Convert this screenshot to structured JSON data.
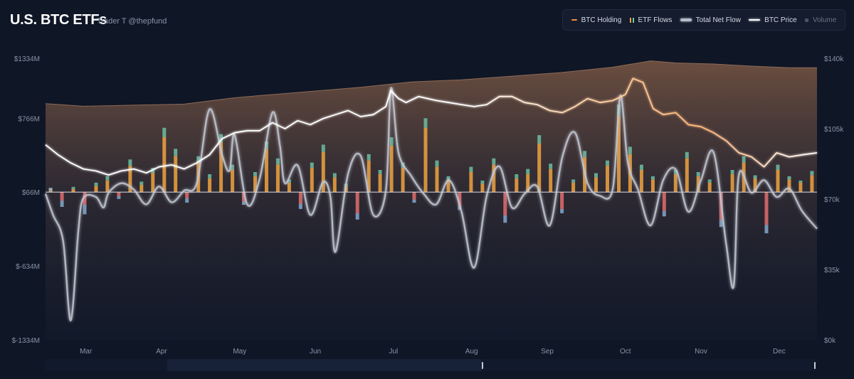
{
  "header": {
    "title": "U.S. BTC ETFs",
    "subtitle": "Trader T @thepfund"
  },
  "legend": {
    "items": [
      {
        "key": "holding",
        "label": "BTC Holding",
        "active": true
      },
      {
        "key": "flows",
        "label": "ETF Flows",
        "active": true
      },
      {
        "key": "net",
        "label": "Total Net Flow",
        "active": true
      },
      {
        "key": "price",
        "label": "BTC Price",
        "active": true
      },
      {
        "key": "volume",
        "label": "Volume",
        "active": false
      }
    ]
  },
  "colors": {
    "background": "#0f1626",
    "holding_fill": "#7a5a45",
    "holding_line": "#f2913d",
    "flow_orange": "#f0a33f",
    "flow_green": "#6fc7a7",
    "flow_red": "#e36d6d",
    "flow_blue": "#8ab0d8",
    "net_flow": "#c3c8d3",
    "price": "#ffffff"
  },
  "chart_data": {
    "type": "bar",
    "title": "U.S. BTC ETFs",
    "left_axis": {
      "ticks": [
        "$1334M",
        "$766M",
        "$66M",
        "$-634M",
        "$-1334M"
      ],
      "tick_values": [
        1334,
        766,
        66,
        -634,
        -1334
      ],
      "range": [
        -1334,
        1334
      ]
    },
    "right_axis": {
      "ticks": [
        "$140k",
        "$105k",
        "$70k",
        "$35k",
        "$0k"
      ],
      "tick_values": [
        140,
        105,
        70,
        35,
        0
      ],
      "range": [
        0,
        140
      ]
    },
    "x_axis": {
      "ticks": [
        "Mar",
        "Apr",
        "May",
        "Jun",
        "Jul",
        "Aug",
        "Sep",
        "Oct",
        "Nov",
        "Dec"
      ],
      "tick_positions": [
        1,
        31,
        62,
        92,
        123,
        154,
        184,
        215,
        245,
        276
      ]
    },
    "x_range": [
      -15,
      291
    ],
    "btc_holding_area": {
      "x": [
        -15,
        0,
        20,
        40,
        60,
        72,
        90,
        110,
        130,
        150,
        170,
        190,
        210,
        225,
        235,
        250,
        265,
        280,
        291
      ],
      "values": [
        904,
        880,
        890,
        900,
        960,
        985,
        1020,
        1060,
        1110,
        1130,
        1165,
        1200,
        1250,
        1310,
        1290,
        1280,
        1260,
        1245,
        1245
      ]
    },
    "btc_price": {
      "x": [
        -15,
        -10,
        -5,
        0,
        5,
        10,
        15,
        20,
        25,
        30,
        35,
        40,
        45,
        50,
        55,
        60,
        65,
        70,
        75,
        80,
        85,
        90,
        95,
        100,
        105,
        110,
        115,
        120,
        122,
        125,
        128,
        133,
        140,
        145,
        150,
        155,
        160,
        165,
        170,
        175,
        180,
        185,
        190,
        195,
        200,
        205,
        210,
        215,
        218,
        222,
        226,
        230,
        235,
        240,
        245,
        250,
        255,
        260,
        265,
        270,
        275,
        280,
        285,
        291
      ],
      "values": [
        97,
        92,
        88,
        85,
        84,
        82,
        84,
        85,
        83,
        86,
        87,
        85,
        88,
        92,
        100,
        103,
        104,
        104,
        108,
        105,
        109,
        107,
        110,
        112,
        114,
        111,
        112,
        116,
        124,
        120,
        118,
        121,
        119,
        118,
        117,
        116,
        117,
        121,
        121,
        118,
        117,
        114,
        113,
        116,
        120,
        118,
        119,
        122,
        130,
        128,
        115,
        112,
        113,
        107,
        106,
        103,
        99,
        93,
        91,
        86,
        93,
        91,
        92,
        93
      ]
    },
    "total_net_flow": {
      "x": [
        -15,
        -12,
        -8,
        -5,
        -2,
        0,
        5,
        8,
        10,
        15,
        20,
        25,
        30,
        35,
        40,
        45,
        50,
        55,
        58,
        60,
        65,
        70,
        75,
        78,
        80,
        85,
        90,
        95,
        98,
        100,
        105,
        110,
        115,
        120,
        122,
        125,
        130,
        135,
        140,
        145,
        150,
        155,
        160,
        165,
        170,
        175,
        180,
        185,
        190,
        195,
        200,
        205,
        210,
        213,
        216,
        220,
        225,
        230,
        235,
        240,
        245,
        250,
        255,
        258,
        260,
        265,
        270,
        275,
        280,
        285,
        291
      ],
      "values": [
        50,
        -150,
        -400,
        -1150,
        -300,
        10,
        20,
        -80,
        60,
        150,
        90,
        -50,
        120,
        -30,
        80,
        150,
        850,
        420,
        270,
        610,
        -50,
        200,
        820,
        500,
        150,
        320,
        -150,
        160,
        20,
        -500,
        240,
        410,
        -150,
        80,
        1050,
        440,
        220,
        50,
        -50,
        180,
        -120,
        -650,
        30,
        310,
        -80,
        50,
        120,
        -250,
        400,
        630,
        150,
        30,
        100,
        980,
        340,
        90,
        -250,
        180,
        280,
        -120,
        180,
        440,
        -430,
        -820,
        230,
        60,
        180,
        20,
        100,
        -110,
        -280
      ]
    },
    "etf_flow_bars": {
      "note": "daily ETF flows per fund in $M",
      "series": [
        {
          "name": "orange",
          "values": [
            40,
            -80,
            30,
            -120,
            60,
            110,
            -40,
            250,
            70,
            180,
            520,
            340,
            -60,
            280,
            130,
            470,
            210,
            -90,
            150,
            410,
            260,
            90,
            -110,
            230,
            380,
            140,
            60,
            -200,
            300,
            170,
            440,
            230,
            -70,
            610,
            240,
            120,
            -130,
            190,
            80,
            260,
            -220,
            130,
            170,
            460,
            220,
            -160,
            90,
            330,
            140,
            250,
            720,
            360,
            210,
            120,
            -180,
            170,
            320,
            150,
            90,
            -260,
            170,
            280,
            130,
            -310,
            210,
            120,
            90,
            160
          ]
        },
        {
          "name": "green",
          "values": [
            -30,
            -60,
            20,
            -90,
            30,
            40,
            -25,
            60,
            30,
            50,
            90,
            70,
            -40,
            60,
            40,
            80,
            50,
            -30,
            40,
            70,
            60,
            30,
            -50,
            50,
            70,
            40,
            20,
            -60,
            60,
            40,
            80,
            50,
            -30,
            90,
            60,
            30,
            -40,
            50,
            30,
            60,
            -70,
            40,
            50,
            80,
            50,
            -40,
            30,
            60,
            40,
            50,
            110,
            70,
            50,
            30,
            -50,
            40,
            60,
            40,
            30,
            -70,
            40,
            60,
            30,
            -80,
            50,
            30,
            20,
            40
          ]
        }
      ]
    }
  },
  "scrollbar": {
    "label": "range navigator"
  }
}
